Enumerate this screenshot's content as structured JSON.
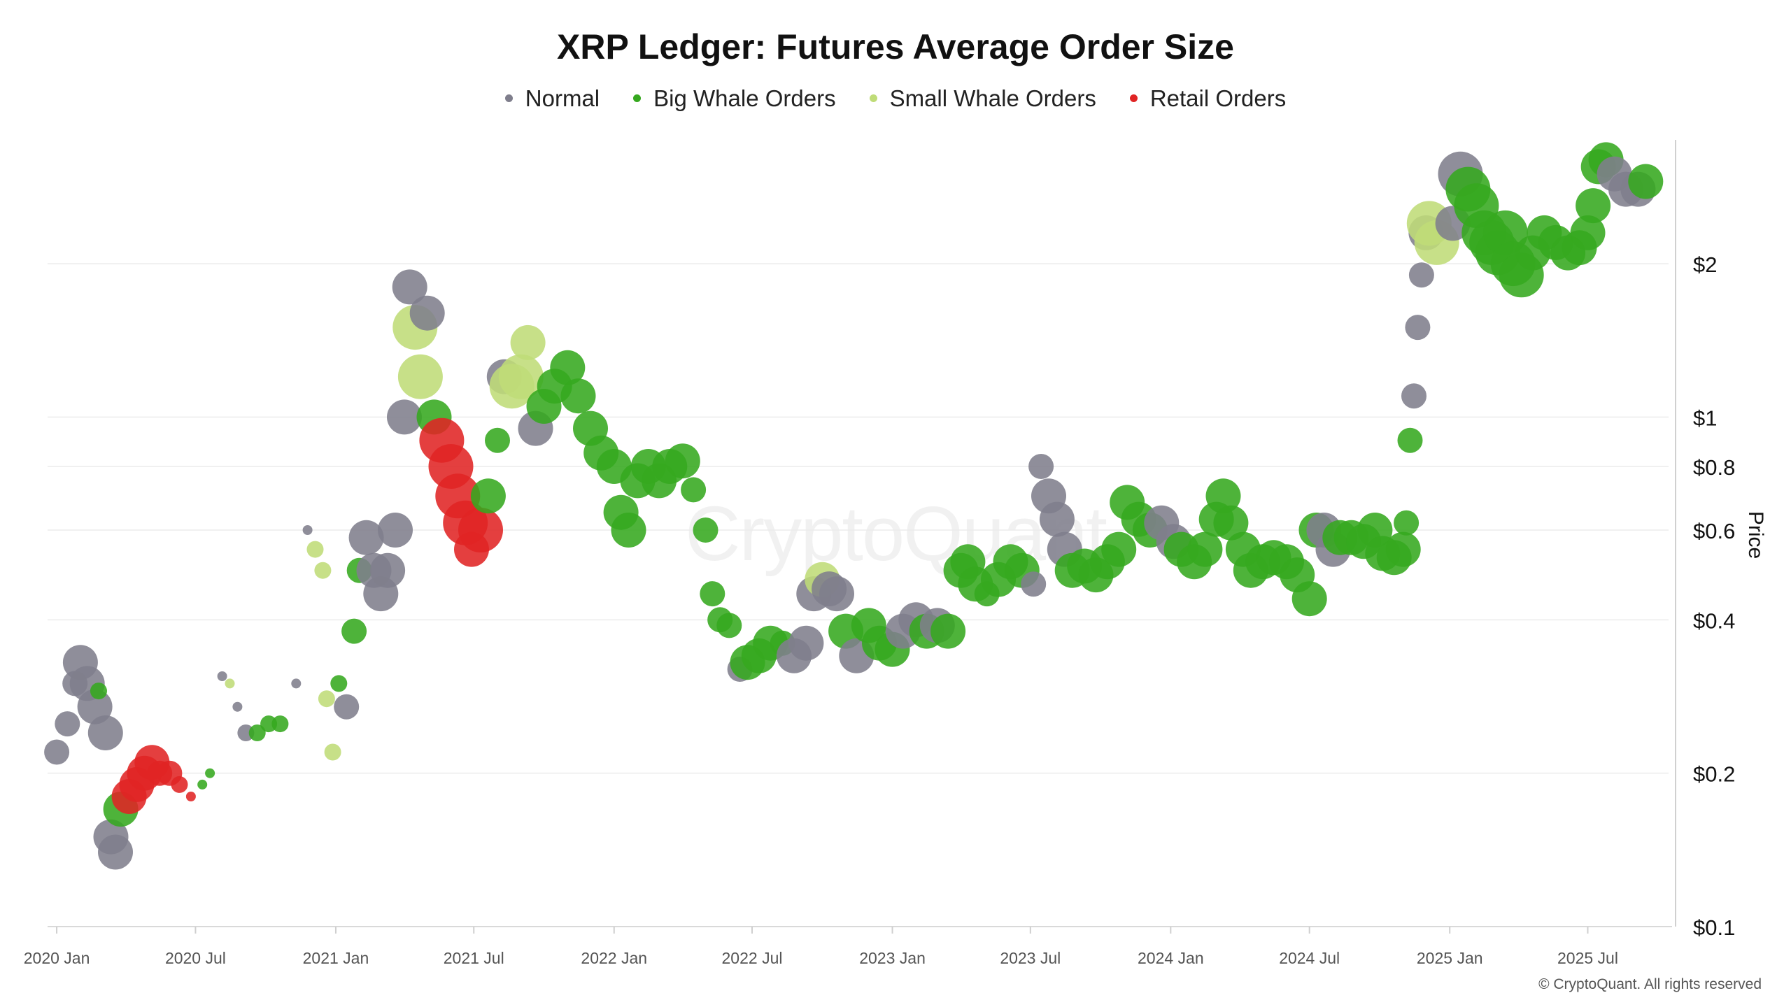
{
  "chart_data": {
    "type": "scatter",
    "title": "XRP Ledger: Futures Average Order Size",
    "ylabel": "Price",
    "xlabel": "",
    "yscale": "log",
    "ylim": [
      0.1,
      3.5
    ],
    "xlim": [
      "2019-12-20",
      "2025-10-15"
    ],
    "grid": "horizontal",
    "legend_position": "top-center",
    "watermark": "CryptoQuant",
    "copyright": "© CryptoQuant. All rights reserved",
    "yticks": [
      {
        "value": 2,
        "label": "$2"
      },
      {
        "value": 1,
        "label": "$1"
      },
      {
        "value": 0.8,
        "label": "$0.8"
      },
      {
        "value": 0.6,
        "label": "$0.6"
      },
      {
        "value": 0.4,
        "label": "$0.4"
      },
      {
        "value": 0.2,
        "label": "$0.2"
      },
      {
        "value": 0.1,
        "label": "$0.1"
      }
    ],
    "xticks": [
      {
        "date": "2020-01-01",
        "label": "2020 Jan"
      },
      {
        "date": "2020-07-01",
        "label": "2020 Jul"
      },
      {
        "date": "2021-01-01",
        "label": "2021 Jan"
      },
      {
        "date": "2021-07-01",
        "label": "2021 Jul"
      },
      {
        "date": "2022-01-01",
        "label": "2022 Jan"
      },
      {
        "date": "2022-07-01",
        "label": "2022 Jul"
      },
      {
        "date": "2023-01-01",
        "label": "2023 Jan"
      },
      {
        "date": "2023-07-01",
        "label": "2023 Jul"
      },
      {
        "date": "2024-01-01",
        "label": "2024 Jan"
      },
      {
        "date": "2024-07-01",
        "label": "2024 Jul"
      },
      {
        "date": "2025-01-01",
        "label": "2025 Jan"
      },
      {
        "date": "2025-07-01",
        "label": "2025 Jul"
      }
    ],
    "series": [
      {
        "name": "Normal",
        "color": "#7f7e8c"
      },
      {
        "name": "Big Whale Orders",
        "color": "#36a81f"
      },
      {
        "name": "Small Whale Orders",
        "color": "#bfdc78"
      },
      {
        "name": "Retail Orders",
        "color": "#e02424"
      }
    ],
    "points": [
      [
        "2020-01-01",
        0.22,
        "Normal",
        "M"
      ],
      [
        "2020-01-15",
        0.25,
        "Normal",
        "M"
      ],
      [
        "2020-01-25",
        0.3,
        "Normal",
        "M"
      ],
      [
        "2020-02-01",
        0.33,
        "Normal",
        "L"
      ],
      [
        "2020-02-10",
        0.3,
        "Normal",
        "L"
      ],
      [
        "2020-02-20",
        0.27,
        "Normal",
        "L"
      ],
      [
        "2020-02-25",
        0.29,
        "Big Whale Orders",
        "S"
      ],
      [
        "2020-03-05",
        0.24,
        "Normal",
        "L"
      ],
      [
        "2020-03-12",
        0.15,
        "Normal",
        "L"
      ],
      [
        "2020-03-18",
        0.14,
        "Normal",
        "L"
      ],
      [
        "2020-03-25",
        0.17,
        "Big Whale Orders",
        "L"
      ],
      [
        "2020-04-05",
        0.18,
        "Retail Orders",
        "L"
      ],
      [
        "2020-04-15",
        0.19,
        "Retail Orders",
        "L"
      ],
      [
        "2020-04-25",
        0.2,
        "Retail Orders",
        "L"
      ],
      [
        "2020-05-05",
        0.21,
        "Retail Orders",
        "L"
      ],
      [
        "2020-05-15",
        0.2,
        "Retail Orders",
        "M"
      ],
      [
        "2020-05-28",
        0.2,
        "Retail Orders",
        "M"
      ],
      [
        "2020-06-10",
        0.19,
        "Retail Orders",
        "S"
      ],
      [
        "2020-06-25",
        0.18,
        "Retail Orders",
        "XS"
      ],
      [
        "2020-07-10",
        0.19,
        "Big Whale Orders",
        "XS"
      ],
      [
        "2020-07-20",
        0.2,
        "Big Whale Orders",
        "XS"
      ],
      [
        "2020-08-05",
        0.31,
        "Normal",
        "XS"
      ],
      [
        "2020-08-15",
        0.3,
        "Small Whale Orders",
        "XS"
      ],
      [
        "2020-08-25",
        0.27,
        "Normal",
        "XS"
      ],
      [
        "2020-09-05",
        0.24,
        "Normal",
        "S"
      ],
      [
        "2020-09-20",
        0.24,
        "Big Whale Orders",
        "S"
      ],
      [
        "2020-10-05",
        0.25,
        "Big Whale Orders",
        "S"
      ],
      [
        "2020-10-20",
        0.25,
        "Big Whale Orders",
        "S"
      ],
      [
        "2020-11-10",
        0.3,
        "Normal",
        "XS"
      ],
      [
        "2020-11-25",
        0.6,
        "Normal",
        "XS"
      ],
      [
        "2020-12-05",
        0.55,
        "Small Whale Orders",
        "S"
      ],
      [
        "2020-12-15",
        0.5,
        "Small Whale Orders",
        "S"
      ],
      [
        "2020-12-20",
        0.28,
        "Small Whale Orders",
        "S"
      ],
      [
        "2020-12-28",
        0.22,
        "Small Whale Orders",
        "S"
      ],
      [
        "2021-01-05",
        0.3,
        "Big Whale Orders",
        "S"
      ],
      [
        "2021-01-15",
        0.27,
        "Normal",
        "M"
      ],
      [
        "2021-01-25",
        0.38,
        "Big Whale Orders",
        "M"
      ],
      [
        "2021-02-01",
        0.5,
        "Big Whale Orders",
        "M"
      ],
      [
        "2021-02-10",
        0.58,
        "Normal",
        "L"
      ],
      [
        "2021-02-20",
        0.5,
        "Normal",
        "L"
      ],
      [
        "2021-03-01",
        0.45,
        "Normal",
        "L"
      ],
      [
        "2021-03-10",
        0.5,
        "Normal",
        "L"
      ],
      [
        "2021-03-20",
        0.6,
        "Normal",
        "L"
      ],
      [
        "2021-04-01",
        1.0,
        "Normal",
        "L"
      ],
      [
        "2021-04-08",
        1.8,
        "Normal",
        "L"
      ],
      [
        "2021-04-15",
        1.5,
        "Small Whale Orders",
        "XL"
      ],
      [
        "2021-04-22",
        1.2,
        "Small Whale Orders",
        "XL"
      ],
      [
        "2021-05-01",
        1.6,
        "Normal",
        "L"
      ],
      [
        "2021-05-10",
        1.0,
        "Big Whale Orders",
        "L"
      ],
      [
        "2021-05-20",
        0.9,
        "Retail Orders",
        "XL"
      ],
      [
        "2021-06-01",
        0.8,
        "Retail Orders",
        "XL"
      ],
      [
        "2021-06-10",
        0.7,
        "Retail Orders",
        "XL"
      ],
      [
        "2021-06-20",
        0.62,
        "Retail Orders",
        "XL"
      ],
      [
        "2021-06-28",
        0.55,
        "Retail Orders",
        "L"
      ],
      [
        "2021-07-10",
        0.6,
        "Retail Orders",
        "XL"
      ],
      [
        "2021-07-20",
        0.7,
        "Big Whale Orders",
        "L"
      ],
      [
        "2021-08-01",
        0.9,
        "Big Whale Orders",
        "M"
      ],
      [
        "2021-08-10",
        1.2,
        "Normal",
        "L"
      ],
      [
        "2021-08-20",
        1.15,
        "Small Whale Orders",
        "XL"
      ],
      [
        "2021-09-01",
        1.2,
        "Small Whale Orders",
        "XL"
      ],
      [
        "2021-09-10",
        1.4,
        "Small Whale Orders",
        "L"
      ],
      [
        "2021-09-20",
        0.95,
        "Normal",
        "L"
      ],
      [
        "2021-10-01",
        1.05,
        "Big Whale Orders",
        "L"
      ],
      [
        "2021-10-15",
        1.15,
        "Big Whale Orders",
        "L"
      ],
      [
        "2021-11-01",
        1.25,
        "Big Whale Orders",
        "L"
      ],
      [
        "2021-11-15",
        1.1,
        "Big Whale Orders",
        "L"
      ],
      [
        "2021-12-01",
        0.95,
        "Big Whale Orders",
        "L"
      ],
      [
        "2021-12-15",
        0.85,
        "Big Whale Orders",
        "L"
      ],
      [
        "2022-01-01",
        0.8,
        "Big Whale Orders",
        "L"
      ],
      [
        "2022-01-10",
        0.65,
        "Big Whale Orders",
        "L"
      ],
      [
        "2022-01-20",
        0.6,
        "Big Whale Orders",
        "L"
      ],
      [
        "2022-02-01",
        0.75,
        "Big Whale Orders",
        "L"
      ],
      [
        "2022-02-15",
        0.8,
        "Big Whale Orders",
        "L"
      ],
      [
        "2022-03-01",
        0.75,
        "Big Whale Orders",
        "L"
      ],
      [
        "2022-03-15",
        0.8,
        "Big Whale Orders",
        "L"
      ],
      [
        "2022-04-01",
        0.82,
        "Big Whale Orders",
        "L"
      ],
      [
        "2022-04-15",
        0.72,
        "Big Whale Orders",
        "M"
      ],
      [
        "2022-05-01",
        0.6,
        "Big Whale Orders",
        "M"
      ],
      [
        "2022-05-10",
        0.45,
        "Big Whale Orders",
        "M"
      ],
      [
        "2022-05-20",
        0.4,
        "Big Whale Orders",
        "M"
      ],
      [
        "2022-06-01",
        0.39,
        "Big Whale Orders",
        "M"
      ],
      [
        "2022-06-15",
        0.32,
        "Normal",
        "M"
      ],
      [
        "2022-06-25",
        0.33,
        "Big Whale Orders",
        "L"
      ],
      [
        "2022-07-10",
        0.34,
        "Big Whale Orders",
        "L"
      ],
      [
        "2022-07-25",
        0.36,
        "Big Whale Orders",
        "L"
      ],
      [
        "2022-08-10",
        0.36,
        "Big Whale Orders",
        "M"
      ],
      [
        "2022-08-25",
        0.34,
        "Normal",
        "L"
      ],
      [
        "2022-09-10",
        0.36,
        "Normal",
        "L"
      ],
      [
        "2022-09-20",
        0.45,
        "Normal",
        "L"
      ],
      [
        "2022-10-01",
        0.48,
        "Small Whale Orders",
        "L"
      ],
      [
        "2022-10-10",
        0.46,
        "Normal",
        "L"
      ],
      [
        "2022-10-20",
        0.45,
        "Normal",
        "L"
      ],
      [
        "2022-11-01",
        0.38,
        "Big Whale Orders",
        "L"
      ],
      [
        "2022-11-15",
        0.34,
        "Normal",
        "L"
      ],
      [
        "2022-12-01",
        0.39,
        "Big Whale Orders",
        "L"
      ],
      [
        "2022-12-15",
        0.36,
        "Big Whale Orders",
        "L"
      ],
      [
        "2023-01-01",
        0.35,
        "Big Whale Orders",
        "L"
      ],
      [
        "2023-01-15",
        0.38,
        "Normal",
        "L"
      ],
      [
        "2023-02-01",
        0.4,
        "Normal",
        "L"
      ],
      [
        "2023-02-15",
        0.38,
        "Big Whale Orders",
        "L"
      ],
      [
        "2023-03-01",
        0.39,
        "Normal",
        "L"
      ],
      [
        "2023-03-15",
        0.38,
        "Big Whale Orders",
        "L"
      ],
      [
        "2023-04-01",
        0.5,
        "Big Whale Orders",
        "L"
      ],
      [
        "2023-04-10",
        0.52,
        "Big Whale Orders",
        "L"
      ],
      [
        "2023-04-20",
        0.47,
        "Big Whale Orders",
        "L"
      ],
      [
        "2023-05-05",
        0.45,
        "Big Whale Orders",
        "M"
      ],
      [
        "2023-05-20",
        0.48,
        "Big Whale Orders",
        "L"
      ],
      [
        "2023-06-05",
        0.52,
        "Big Whale Orders",
        "L"
      ],
      [
        "2023-06-20",
        0.5,
        "Big Whale Orders",
        "L"
      ],
      [
        "2023-07-05",
        0.47,
        "Normal",
        "M"
      ],
      [
        "2023-07-15",
        0.8,
        "Normal",
        "M"
      ],
      [
        "2023-07-25",
        0.7,
        "Normal",
        "L"
      ],
      [
        "2023-08-05",
        0.63,
        "Normal",
        "L"
      ],
      [
        "2023-08-15",
        0.55,
        "Normal",
        "L"
      ],
      [
        "2023-08-25",
        0.5,
        "Big Whale Orders",
        "L"
      ],
      [
        "2023-09-10",
        0.51,
        "Big Whale Orders",
        "L"
      ],
      [
        "2023-09-25",
        0.49,
        "Big Whale Orders",
        "L"
      ],
      [
        "2023-10-10",
        0.52,
        "Big Whale Orders",
        "L"
      ],
      [
        "2023-10-25",
        0.55,
        "Big Whale Orders",
        "L"
      ],
      [
        "2023-11-05",
        0.68,
        "Big Whale Orders",
        "L"
      ],
      [
        "2023-11-20",
        0.63,
        "Big Whale Orders",
        "L"
      ],
      [
        "2023-12-05",
        0.6,
        "Big Whale Orders",
        "L"
      ],
      [
        "2023-12-20",
        0.62,
        "Normal",
        "L"
      ],
      [
        "2024-01-05",
        0.57,
        "Normal",
        "L"
      ],
      [
        "2024-01-15",
        0.55,
        "Big Whale Orders",
        "L"
      ],
      [
        "2024-02-01",
        0.52,
        "Big Whale Orders",
        "L"
      ],
      [
        "2024-02-15",
        0.55,
        "Big Whale Orders",
        "L"
      ],
      [
        "2024-03-01",
        0.63,
        "Big Whale Orders",
        "L"
      ],
      [
        "2024-03-10",
        0.7,
        "Big Whale Orders",
        "L"
      ],
      [
        "2024-03-20",
        0.62,
        "Big Whale Orders",
        "L"
      ],
      [
        "2024-04-05",
        0.55,
        "Big Whale Orders",
        "L"
      ],
      [
        "2024-04-15",
        0.5,
        "Big Whale Orders",
        "L"
      ],
      [
        "2024-05-01",
        0.52,
        "Big Whale Orders",
        "L"
      ],
      [
        "2024-05-15",
        0.53,
        "Big Whale Orders",
        "L"
      ],
      [
        "2024-06-01",
        0.52,
        "Big Whale Orders",
        "L"
      ],
      [
        "2024-06-15",
        0.49,
        "Big Whale Orders",
        "L"
      ],
      [
        "2024-07-01",
        0.44,
        "Big Whale Orders",
        "L"
      ],
      [
        "2024-07-10",
        0.6,
        "Big Whale Orders",
        "L"
      ],
      [
        "2024-07-20",
        0.6,
        "Normal",
        "L"
      ],
      [
        "2024-08-01",
        0.55,
        "Normal",
        "L"
      ],
      [
        "2024-08-10",
        0.58,
        "Big Whale Orders",
        "L"
      ],
      [
        "2024-08-25",
        0.58,
        "Big Whale Orders",
        "L"
      ],
      [
        "2024-09-10",
        0.57,
        "Big Whale Orders",
        "L"
      ],
      [
        "2024-09-25",
        0.6,
        "Big Whale Orders",
        "L"
      ],
      [
        "2024-10-05",
        0.54,
        "Big Whale Orders",
        "L"
      ],
      [
        "2024-10-20",
        0.53,
        "Big Whale Orders",
        "L"
      ],
      [
        "2024-11-01",
        0.55,
        "Big Whale Orders",
        "L"
      ],
      [
        "2024-11-05",
        0.62,
        "Big Whale Orders",
        "M"
      ],
      [
        "2024-11-10",
        0.9,
        "Big Whale Orders",
        "M"
      ],
      [
        "2024-11-15",
        1.1,
        "Normal",
        "M"
      ],
      [
        "2024-11-20",
        1.5,
        "Normal",
        "M"
      ],
      [
        "2024-11-25",
        1.9,
        "Normal",
        "M"
      ],
      [
        "2024-12-01",
        2.3,
        "Normal",
        "L"
      ],
      [
        "2024-12-05",
        2.4,
        "Small Whale Orders",
        "XL"
      ],
      [
        "2024-12-15",
        2.2,
        "Small Whale Orders",
        "XL"
      ],
      [
        "2025-01-05",
        2.4,
        "Normal",
        "L"
      ],
      [
        "2025-01-15",
        3.0,
        "Normal",
        "XL"
      ],
      [
        "2025-01-25",
        2.8,
        "Big Whale Orders",
        "XL"
      ],
      [
        "2025-02-05",
        2.6,
        "Big Whale Orders",
        "XL"
      ],
      [
        "2025-02-15",
        2.3,
        "Big Whale Orders",
        "XL"
      ],
      [
        "2025-02-25",
        2.2,
        "Big Whale Orders",
        "XL"
      ],
      [
        "2025-03-05",
        2.1,
        "Big Whale Orders",
        "XL"
      ],
      [
        "2025-03-15",
        2.3,
        "Big Whale Orders",
        "XL"
      ],
      [
        "2025-03-25",
        2.0,
        "Big Whale Orders",
        "XL"
      ],
      [
        "2025-04-05",
        1.9,
        "Big Whale Orders",
        "XL"
      ],
      [
        "2025-04-20",
        2.1,
        "Big Whale Orders",
        "L"
      ],
      [
        "2025-05-05",
        2.3,
        "Big Whale Orders",
        "L"
      ],
      [
        "2025-05-20",
        2.2,
        "Big Whale Orders",
        "L"
      ],
      [
        "2025-06-05",
        2.1,
        "Big Whale Orders",
        "L"
      ],
      [
        "2025-06-20",
        2.15,
        "Big Whale Orders",
        "L"
      ],
      [
        "2025-07-01",
        2.3,
        "Big Whale Orders",
        "L"
      ],
      [
        "2025-07-08",
        2.6,
        "Big Whale Orders",
        "L"
      ],
      [
        "2025-07-15",
        3.1,
        "Big Whale Orders",
        "L"
      ],
      [
        "2025-07-25",
        3.2,
        "Big Whale Orders",
        "L"
      ],
      [
        "2025-08-05",
        3.0,
        "Normal",
        "L"
      ],
      [
        "2025-08-20",
        2.8,
        "Normal",
        "L"
      ],
      [
        "2025-09-05",
        2.8,
        "Normal",
        "L"
      ],
      [
        "2025-09-15",
        2.9,
        "Big Whale Orders",
        "L"
      ]
    ]
  }
}
